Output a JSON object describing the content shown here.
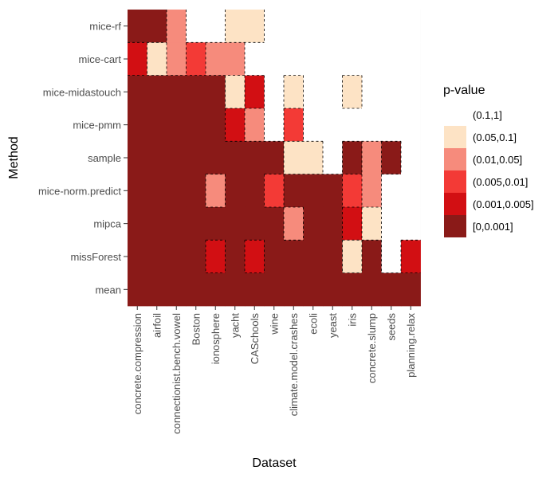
{
  "chart_data": {
    "type": "heatmap",
    "title": "",
    "xlabel": "Dataset",
    "ylabel": "Method",
    "x_categories": [
      "concrete.compression",
      "airfoil",
      "connectionist.bench.vowel",
      "Boston",
      "ionosphere",
      "yacht",
      "CASchools",
      "wine",
      "climate.model.crashes",
      "ecoli",
      "yeast",
      "iris",
      "concrete.slump",
      "seeds",
      "planning.relax"
    ],
    "y_categories": [
      "mice-rf",
      "mice-cart",
      "mice-midastouch",
      "mice-pmm",
      "sample",
      "mice-norm.predict",
      "mipca",
      "missForest",
      "mean"
    ],
    "legend": {
      "title": "p-value",
      "position": "right",
      "levels": [
        {
          "label": "(0.1,1]",
          "color": "#ffffff"
        },
        {
          "label": "(0.05,0.1]",
          "color": "#fde3c5"
        },
        {
          "label": "(0.01,0.05]",
          "color": "#f68b7c"
        },
        {
          "label": "(0.005,0.01]",
          "color": "#f33a36"
        },
        {
          "label": "(0.001,0.005]",
          "color": "#d20f13"
        },
        {
          "label": "[0,0.001]",
          "color": "#8a1a18"
        }
      ]
    },
    "values": [
      [
        5,
        5,
        2,
        0,
        0,
        1,
        1,
        0,
        0,
        0,
        0,
        0,
        0,
        0,
        0
      ],
      [
        4,
        1,
        2,
        3,
        2,
        2,
        0,
        0,
        0,
        0,
        0,
        0,
        0,
        0,
        0
      ],
      [
        5,
        5,
        5,
        5,
        5,
        1,
        4,
        0,
        1,
        0,
        0,
        1,
        0,
        0,
        0
      ],
      [
        5,
        5,
        5,
        5,
        5,
        4,
        2,
        0,
        3,
        0,
        0,
        0,
        0,
        0,
        0
      ],
      [
        5,
        5,
        5,
        5,
        5,
        5,
        5,
        5,
        1,
        1,
        0,
        5,
        2,
        5,
        0
      ],
      [
        5,
        5,
        5,
        5,
        2,
        5,
        5,
        3,
        5,
        5,
        5,
        3,
        2,
        0,
        0
      ],
      [
        5,
        5,
        5,
        5,
        5,
        5,
        5,
        5,
        2,
        5,
        5,
        4,
        1,
        0,
        0
      ],
      [
        5,
        5,
        5,
        5,
        4,
        5,
        4,
        5,
        5,
        5,
        5,
        1,
        5,
        0,
        4
      ],
      [
        5,
        5,
        5,
        5,
        5,
        5,
        5,
        5,
        5,
        5,
        5,
        5,
        5,
        5,
        5
      ]
    ]
  }
}
